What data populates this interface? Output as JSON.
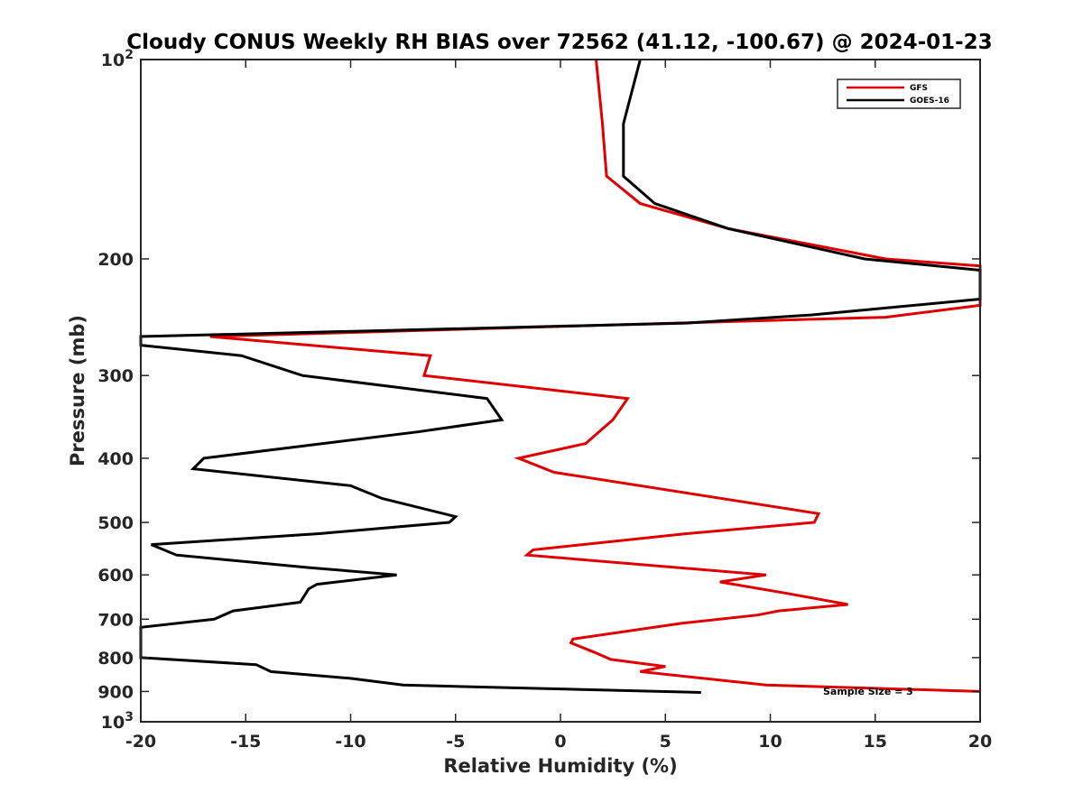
{
  "chart_data": {
    "type": "line",
    "title": "Cloudy CONUS Weekly RH BIAS over 72562 (41.12, -100.67) @ 2024-01-23",
    "xlabel": "Relative Humidity (%)",
    "ylabel": "Pressure (mb)",
    "xlim": [
      -20,
      20
    ],
    "ylim": [
      100,
      1000
    ],
    "yscale": "log",
    "y_reversed": true,
    "grid": false,
    "legend_position": "top-right",
    "x_ticks": [
      "-20",
      "-15",
      "-10",
      "-5",
      "0",
      "5",
      "10",
      "15",
      "20"
    ],
    "y_ticks": [
      {
        "value": 100,
        "base": "10",
        "exp": "2"
      },
      {
        "value": 200,
        "label": "200"
      },
      {
        "value": 300,
        "label": "300"
      },
      {
        "value": 400,
        "label": "400"
      },
      {
        "value": 500,
        "label": "500"
      },
      {
        "value": 600,
        "label": "600"
      },
      {
        "value": 700,
        "label": "700"
      },
      {
        "value": 800,
        "label": "800"
      },
      {
        "value": 900,
        "label": "900"
      },
      {
        "value": 1000,
        "base": "10",
        "exp": "3"
      }
    ],
    "annotation": "Sample Size = 3",
    "series": [
      {
        "name": "GFS",
        "color": "#e00000",
        "points": [
          [
            1.7,
            100
          ],
          [
            2.0,
            125
          ],
          [
            2.2,
            150
          ],
          [
            3.8,
            165
          ],
          [
            8.0,
            180
          ],
          [
            15.5,
            200
          ],
          [
            20.0,
            205
          ],
          [
            20.0,
            235
          ],
          [
            15.5,
            245
          ],
          [
            5.5,
            250
          ],
          [
            -16.7,
            262
          ],
          [
            -6.2,
            280
          ],
          [
            -6.5,
            300
          ],
          [
            3.2,
            325
          ],
          [
            2.5,
            350
          ],
          [
            1.2,
            380
          ],
          [
            -2.0,
            400
          ],
          [
            -0.3,
            420
          ],
          [
            12.3,
            485
          ],
          [
            12.1,
            500
          ],
          [
            6.0,
            520
          ],
          [
            -1.3,
            550
          ],
          [
            -1.6,
            560
          ],
          [
            9.8,
            600
          ],
          [
            7.6,
            615
          ],
          [
            10.8,
            640
          ],
          [
            13.7,
            665
          ],
          [
            10.4,
            680
          ],
          [
            9.4,
            690
          ],
          [
            5.8,
            710
          ],
          [
            0.6,
            750
          ],
          [
            0.5,
            760
          ],
          [
            1.6,
            785
          ],
          [
            2.4,
            805
          ],
          [
            5.0,
            825
          ],
          [
            3.8,
            840
          ],
          [
            9.8,
            880
          ],
          [
            20.0,
            900
          ]
        ]
      },
      {
        "name": "GOES-16",
        "color": "#000000",
        "points": [
          [
            3.8,
            100
          ],
          [
            3.0,
            125
          ],
          [
            3.0,
            150
          ],
          [
            4.5,
            165
          ],
          [
            8.0,
            180
          ],
          [
            14.5,
            200
          ],
          [
            20.0,
            208
          ],
          [
            20.0,
            230
          ],
          [
            12.0,
            243
          ],
          [
            6.0,
            250
          ],
          [
            -20.0,
            262
          ],
          [
            -20.0,
            270
          ],
          [
            -15.2,
            280
          ],
          [
            -12.3,
            300
          ],
          [
            -3.5,
            325
          ],
          [
            -2.8,
            350
          ],
          [
            -6.8,
            365
          ],
          [
            -17.0,
            400
          ],
          [
            -17.5,
            415
          ],
          [
            -10.0,
            440
          ],
          [
            -8.5,
            460
          ],
          [
            -5.0,
            490
          ],
          [
            -5.3,
            500
          ],
          [
            -11.5,
            520
          ],
          [
            -19.5,
            540
          ],
          [
            -18.3,
            560
          ],
          [
            -12.0,
            585
          ],
          [
            -7.8,
            600
          ],
          [
            -11.6,
            620
          ],
          [
            -12.0,
            630
          ],
          [
            -12.4,
            660
          ],
          [
            -15.6,
            680
          ],
          [
            -16.5,
            700
          ],
          [
            -20.0,
            720
          ],
          [
            -20.0,
            800
          ],
          [
            -14.5,
            820
          ],
          [
            -13.8,
            840
          ],
          [
            -10.0,
            860
          ],
          [
            -7.5,
            880
          ],
          [
            6.7,
            903
          ]
        ]
      }
    ]
  }
}
